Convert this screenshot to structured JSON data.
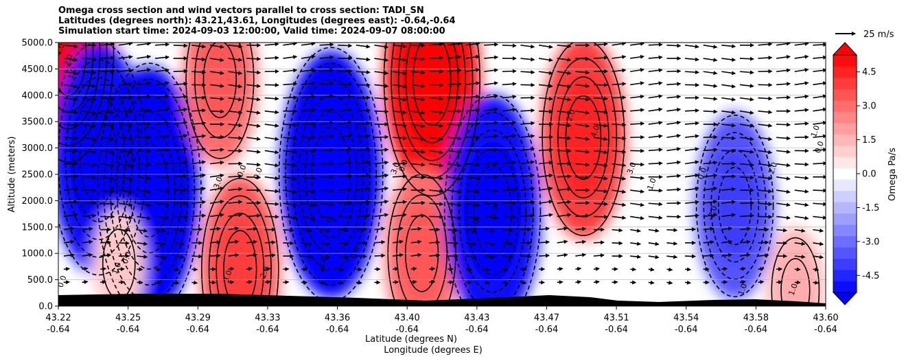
{
  "chart_data": {
    "type": "contourf",
    "title_lines": [
      "Omega cross section and wind vectors parallel to cross section: TADI_SN",
      "Latitudes (degrees north): 43.21,43.61, Longitudes (degrees east): -0.64,-0.64",
      "Simulation start time: 2024-09-03 12:00:00, Valid time: 2024-09-07 08:00:00"
    ],
    "ylabel": "Altitude (meters)",
    "xlabel_lat": "Latitude (degrees N)",
    "xlabel_lon": "Longitude (degrees E)",
    "ylim": [
      0,
      5000
    ],
    "y_ticks": [
      "0.0",
      "500.0",
      "1000.0",
      "1500.0",
      "2000.0",
      "2500.0",
      "3000.0",
      "3500.0",
      "4000.0",
      "4500.0",
      "5000.0"
    ],
    "x_ticks_lat": [
      "43.22",
      "43.25",
      "43.29",
      "43.33",
      "43.36",
      "43.40",
      "43.43",
      "43.47",
      "43.51",
      "43.54",
      "43.58",
      "43.60"
    ],
    "x_ticks_lon": [
      "-0.64",
      "-0.64",
      "-0.64",
      "-0.64",
      "-0.64",
      "-0.64",
      "-0.64",
      "-0.64",
      "-0.64",
      "-0.64",
      "-0.64",
      "-0.64"
    ],
    "colorbar": {
      "label": "Omega Pa/s",
      "range": [
        -5.25,
        5.25
      ],
      "ticks": [
        "-4.5",
        "-3.0",
        "-1.5",
        "0.0",
        "1.5",
        "3.0",
        "4.5"
      ],
      "tick_values": [
        -4.5,
        -3.0,
        -1.5,
        0.0,
        1.5,
        3.0,
        4.5
      ],
      "extend": "both",
      "cmap": "bwr"
    },
    "vector_key": "25 m/s",
    "grid": "horizontal",
    "omega_cells": [
      {
        "lat": 43.225,
        "alt": 4800,
        "omega": 4.5
      },
      {
        "lat": 43.24,
        "alt": 2800,
        "omega": -5.0
      },
      {
        "lat": 43.265,
        "alt": 2200,
        "omega": -5.5
      },
      {
        "lat": 43.25,
        "alt": 800,
        "omega": 1.0
      },
      {
        "lat": 43.3,
        "alt": 4300,
        "omega": 3.0
      },
      {
        "lat": 43.31,
        "alt": 700,
        "omega": 3.5
      },
      {
        "lat": 43.355,
        "alt": 2500,
        "omega": -5.5
      },
      {
        "lat": 43.405,
        "alt": 4300,
        "omega": 5.0
      },
      {
        "lat": 43.4,
        "alt": 1000,
        "omega": 3.0
      },
      {
        "lat": 43.435,
        "alt": 1800,
        "omega": -5.0
      },
      {
        "lat": 43.48,
        "alt": 3200,
        "omega": 4.0
      },
      {
        "lat": 43.555,
        "alt": 1900,
        "omega": -3.5
      },
      {
        "lat": 43.585,
        "alt": 300,
        "omega": 1.5
      }
    ],
    "contour_labels": [
      "4.0",
      "2.0",
      "1.0",
      "0.0",
      "1.0",
      "0.0",
      "-3.0",
      "0.0",
      "0.0",
      "3.0",
      "-2.0",
      "-1.0",
      "0.0",
      "3.0",
      "0.0",
      "-5.0",
      "-2.0",
      "2.0",
      "4.0",
      "3.0",
      "1.0",
      "0.0",
      "-2.0",
      "1.0",
      "2.0",
      "1.0",
      "0.0",
      "1.0"
    ],
    "wind": {
      "direction": "parallel to cross section, predominantly northward (left to right)"
    }
  }
}
